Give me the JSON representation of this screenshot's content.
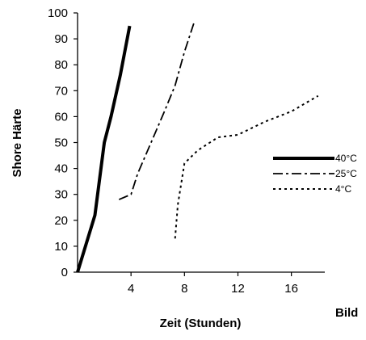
{
  "chart_data": {
    "type": "line",
    "xlabel": "Zeit (Stunden)",
    "ylabel": "Shore Härte",
    "xlim": [
      0,
      18.5
    ],
    "ylim": [
      0,
      100
    ],
    "x_ticks": [
      4,
      8,
      12,
      16
    ],
    "x_tick_labels": [
      "4",
      "8",
      "12",
      "16"
    ],
    "y_ticks": [
      0,
      10,
      20,
      30,
      40,
      50,
      60,
      70,
      80,
      90,
      100
    ],
    "y_tick_labels": [
      "0",
      "10",
      "20",
      "30",
      "40",
      "50",
      "60",
      "70",
      "80",
      "90",
      "100"
    ],
    "grid": false,
    "legend_position": "right",
    "series": [
      {
        "name": "40°C",
        "style": "solid-thick",
        "color": "#000000",
        "points": [
          [
            0,
            0
          ],
          [
            1.3,
            22
          ],
          [
            2.0,
            50
          ],
          [
            2.5,
            60
          ],
          [
            3.2,
            76
          ],
          [
            3.9,
            95
          ]
        ]
      },
      {
        "name": "25°C",
        "style": "dash-dot",
        "color": "#000000",
        "points": [
          [
            3.1,
            28
          ],
          [
            4.0,
            30
          ],
          [
            4.5,
            38
          ],
          [
            5.5,
            50
          ],
          [
            6.5,
            62
          ],
          [
            7.3,
            72
          ],
          [
            8.0,
            85
          ],
          [
            8.7,
            96
          ]
        ]
      },
      {
        "name": "4°C",
        "style": "dotted",
        "color": "#000000",
        "points": [
          [
            7.3,
            13
          ],
          [
            7.5,
            26
          ],
          [
            8.0,
            42
          ],
          [
            9.0,
            47
          ],
          [
            10.5,
            52
          ],
          [
            12.0,
            53
          ],
          [
            14.0,
            58
          ],
          [
            16.0,
            62
          ],
          [
            18.0,
            68
          ]
        ]
      }
    ]
  },
  "figure_label": "Bild"
}
